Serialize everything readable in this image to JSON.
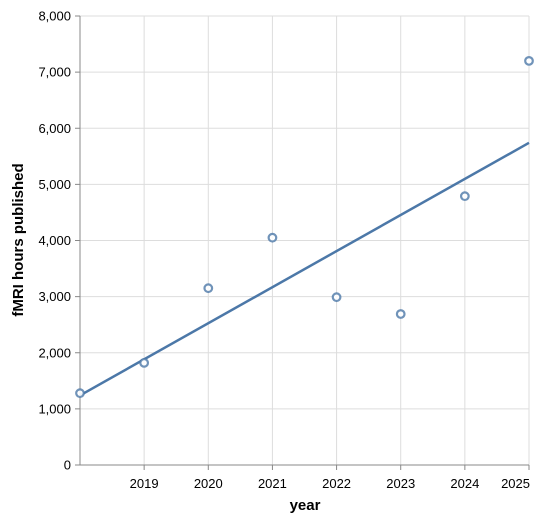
{
  "chart_data": {
    "type": "scatter",
    "xlabel": "year",
    "ylabel": "fMRI hours published",
    "xlim": [
      2018,
      2025
    ],
    "ylim": [
      0,
      8000
    ],
    "x_ticks": [
      "2019",
      "2020",
      "2021",
      "2022",
      "2023",
      "2024",
      "2025"
    ],
    "y_ticks": [
      "0",
      "1,000",
      "2,000",
      "3,000",
      "4,000",
      "5,000",
      "6,000",
      "7,000",
      "8,000"
    ],
    "grid": true,
    "series": [
      {
        "type": "scatter",
        "x": [
          2018,
          2019,
          2020,
          2021,
          2022,
          2023,
          2024,
          2025
        ],
        "y": [
          1280,
          1820,
          3150,
          4050,
          2990,
          2690,
          4790,
          7200
        ]
      },
      {
        "type": "line",
        "x": [
          2018,
          2025
        ],
        "y": [
          1240,
          5740
        ]
      }
    ],
    "colors": {
      "points": "#4c78a8",
      "trend": "#4c78a8",
      "grid": "#dddddd",
      "axis": "#888888"
    }
  }
}
